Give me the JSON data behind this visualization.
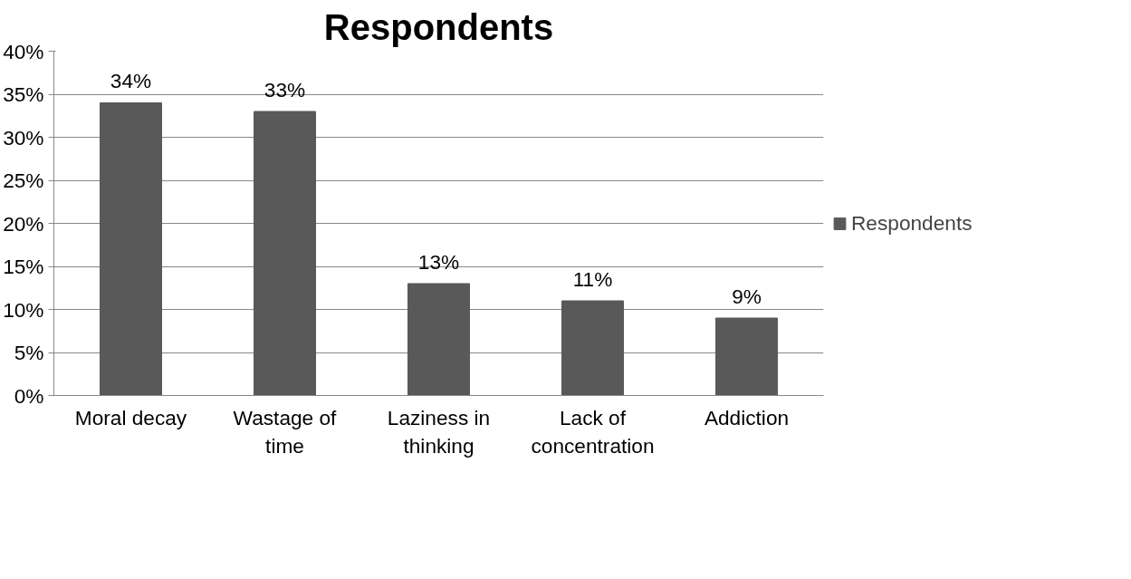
{
  "chart_data": {
    "type": "bar",
    "title": "Respondents",
    "categories": [
      "Moral decay",
      "Wastage of time",
      "Laziness in thinking",
      "Lack of concentration",
      "Addiction"
    ],
    "series": [
      {
        "name": "Respondents",
        "color": "#595959",
        "values": [
          34,
          33,
          13,
          11,
          9
        ],
        "value_labels": [
          "34%",
          "33%",
          "13%",
          "11%",
          "9%"
        ]
      }
    ],
    "ylim": [
      0,
      40
    ],
    "yticks": [
      {
        "value": 0,
        "label": "0%"
      },
      {
        "value": 5,
        "label": "5%"
      },
      {
        "value": 10,
        "label": "10%"
      },
      {
        "value": 15,
        "label": "15%"
      },
      {
        "value": 20,
        "label": "20%"
      },
      {
        "value": 25,
        "label": "25%"
      },
      {
        "value": 30,
        "label": "30%"
      },
      {
        "value": 35,
        "label": "35%"
      },
      {
        "value": 40,
        "label": "40%"
      }
    ],
    "grid": "y",
    "legend": "right"
  }
}
